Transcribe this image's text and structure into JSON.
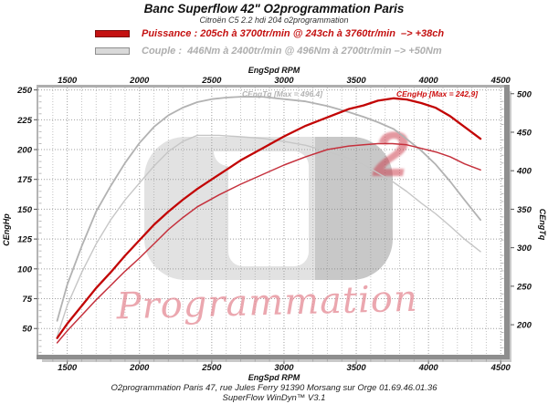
{
  "header": {
    "title": "Banc Superflow 42\" O2programmation Paris",
    "subtitle": "Citroën C5 2.2 hdi 204 o2programmation"
  },
  "legend": {
    "puissance": {
      "label": "Puissance : 205ch à 3700tr/min @ 243ch à 3760tr/min  –> +38ch",
      "color": "#c41111"
    },
    "couple": {
      "label": "Couple :  446Nm à 2400tr/min @ 496Nm à 2700tr/min –> +50Nm",
      "color": "#aeaeae"
    }
  },
  "axis_titles": {
    "top": "EngSpd RPM",
    "bottom": "EngSpd RPM",
    "left": "CEngHp",
    "right": "CEngTq"
  },
  "annotations": {
    "torque_max": "CEngTq [Max = 496.4]",
    "power_max": "CEngHp [Max = 242,9]"
  },
  "watermark": {
    "big_digit": "2",
    "script": "Programmation"
  },
  "footer": {
    "line1": "O2programmation Paris 47, rue Jules Ferry 91390 Morsang sur Orge 01.69.46.01.36",
    "line2": "SuperFlow WinDyn™ V3.1"
  },
  "chart_data": {
    "type": "line",
    "title": "Banc Superflow 42\" O2programmation Paris",
    "x": {
      "label": "EngSpd RPM",
      "min": 1300,
      "max": 4530,
      "minor_step": 100,
      "ticks": [
        1500,
        2000,
        2500,
        3000,
        3500,
        4000,
        4500
      ]
    },
    "y_left": {
      "label": "CEngHp",
      "min": 28,
      "max": 252,
      "ticks": [
        50,
        75,
        100,
        125,
        150,
        175,
        200,
        225,
        250
      ]
    },
    "y_right": {
      "label": "CEngTq",
      "min": 161,
      "max": 508,
      "ticks": [
        200,
        250,
        300,
        350,
        400,
        450,
        500
      ]
    },
    "grid": true,
    "legend_position": "top",
    "series": [
      {
        "name": "couple-origine",
        "axis": "right",
        "color": "#c6c6c6",
        "width": 1.4,
        "points": [
          [
            1430,
            185
          ],
          [
            1500,
            225
          ],
          [
            1600,
            268
          ],
          [
            1700,
            305
          ],
          [
            1800,
            336
          ],
          [
            1900,
            362
          ],
          [
            2000,
            384
          ],
          [
            2100,
            406
          ],
          [
            2200,
            425
          ],
          [
            2300,
            438
          ],
          [
            2400,
            446
          ],
          [
            2550,
            446
          ],
          [
            2700,
            444
          ],
          [
            2850,
            442
          ],
          [
            3000,
            438
          ],
          [
            3150,
            433
          ],
          [
            3300,
            425
          ],
          [
            3450,
            416
          ],
          [
            3550,
            408
          ],
          [
            3650,
            397
          ],
          [
            3750,
            386
          ],
          [
            3850,
            373
          ],
          [
            3950,
            358
          ],
          [
            4050,
            344
          ],
          [
            4150,
            328
          ],
          [
            4250,
            311
          ],
          [
            4360,
            295
          ]
        ]
      },
      {
        "name": "couple-o2",
        "axis": "right",
        "color": "#b2b2b2",
        "width": 1.8,
        "points": [
          [
            1430,
            205
          ],
          [
            1500,
            252
          ],
          [
            1600,
            302
          ],
          [
            1700,
            347
          ],
          [
            1800,
            380
          ],
          [
            1900,
            410
          ],
          [
            2000,
            436
          ],
          [
            2100,
            457
          ],
          [
            2200,
            472
          ],
          [
            2300,
            482
          ],
          [
            2400,
            489
          ],
          [
            2500,
            493
          ],
          [
            2600,
            495
          ],
          [
            2700,
            496
          ],
          [
            2850,
            496
          ],
          [
            3000,
            493
          ],
          [
            3150,
            490
          ],
          [
            3300,
            484
          ],
          [
            3450,
            476
          ],
          [
            3550,
            470
          ],
          [
            3650,
            463
          ],
          [
            3760,
            454
          ],
          [
            3850,
            441
          ],
          [
            3950,
            426
          ],
          [
            4050,
            408
          ],
          [
            4150,
            386
          ],
          [
            4250,
            362
          ],
          [
            4360,
            336
          ]
        ]
      },
      {
        "name": "puissance-origine",
        "axis": "left",
        "color": "#c5303c",
        "width": 1.5,
        "points": [
          [
            1430,
            38
          ],
          [
            1500,
            48
          ],
          [
            1600,
            61
          ],
          [
            1700,
            74
          ],
          [
            1800,
            86
          ],
          [
            1900,
            98
          ],
          [
            2000,
            109
          ],
          [
            2100,
            121
          ],
          [
            2200,
            133
          ],
          [
            2300,
            143
          ],
          [
            2400,
            152
          ],
          [
            2550,
            162
          ],
          [
            2700,
            171
          ],
          [
            2850,
            179
          ],
          [
            3000,
            187
          ],
          [
            3150,
            194
          ],
          [
            3300,
            200
          ],
          [
            3450,
            203
          ],
          [
            3550,
            204
          ],
          [
            3650,
            205
          ],
          [
            3750,
            205
          ],
          [
            3850,
            204
          ],
          [
            3950,
            201
          ],
          [
            4050,
            198
          ],
          [
            4150,
            194
          ],
          [
            4250,
            188
          ],
          [
            4360,
            183
          ]
        ]
      },
      {
        "name": "puissance-o2",
        "axis": "left",
        "color": "#c20404",
        "width": 2.3,
        "points": [
          [
            1430,
            42
          ],
          [
            1500,
            54
          ],
          [
            1600,
            69
          ],
          [
            1700,
            84
          ],
          [
            1800,
            97
          ],
          [
            1900,
            111
          ],
          [
            2000,
            124
          ],
          [
            2100,
            137
          ],
          [
            2200,
            148
          ],
          [
            2300,
            158
          ],
          [
            2400,
            167
          ],
          [
            2500,
            175
          ],
          [
            2600,
            183
          ],
          [
            2700,
            191
          ],
          [
            2850,
            201
          ],
          [
            3000,
            211
          ],
          [
            3150,
            220
          ],
          [
            3300,
            227
          ],
          [
            3450,
            234
          ],
          [
            3550,
            237
          ],
          [
            3650,
            241
          ],
          [
            3760,
            243
          ],
          [
            3850,
            242
          ],
          [
            3950,
            239
          ],
          [
            4050,
            235
          ],
          [
            4150,
            228
          ],
          [
            4250,
            219
          ],
          [
            4360,
            209
          ]
        ]
      }
    ],
    "peak_annotations": [
      {
        "text": "CEngHp [Max = 242,9]",
        "color": "#cc0f0f"
      },
      {
        "text": "CEngTq [Max = 496.4]",
        "color": "#b3b3b3"
      }
    ]
  }
}
